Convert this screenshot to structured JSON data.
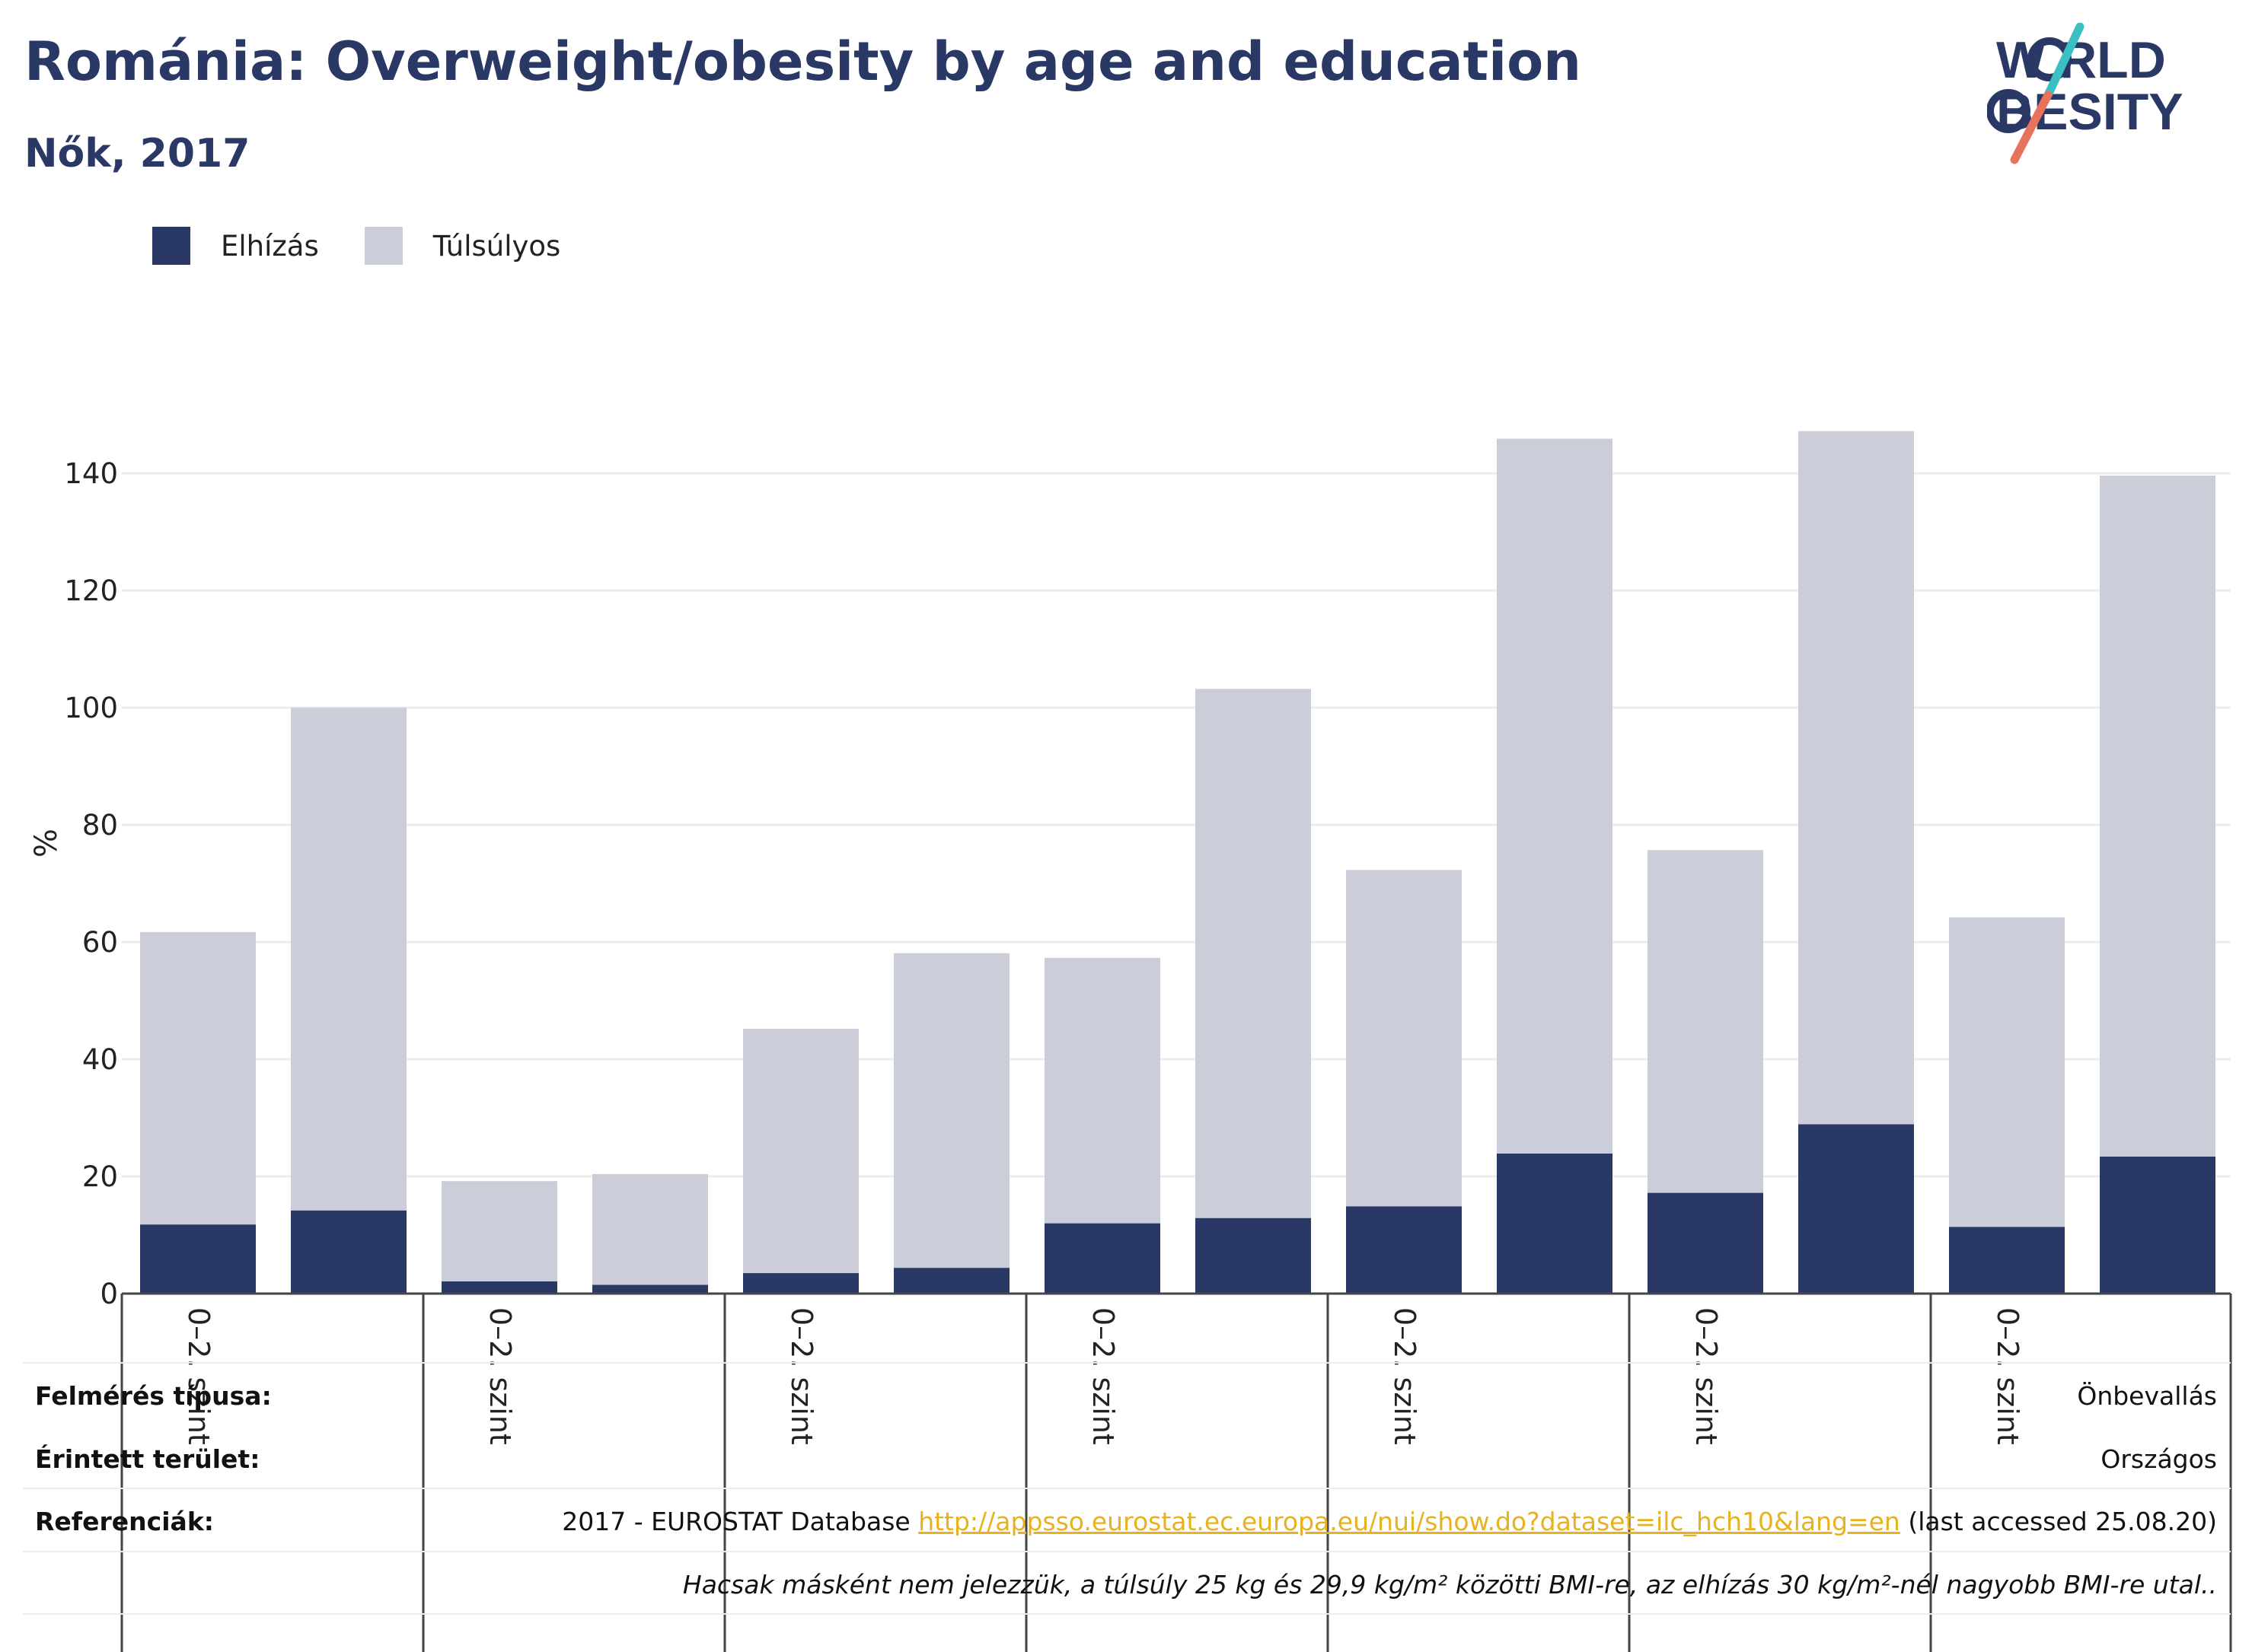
{
  "header": {
    "title": "Románia: Overweight/obesity by age and education",
    "subtitle": "Nők, 2017"
  },
  "logo": {
    "line1": "W RLD",
    "line2": "BESITY",
    "brand": "WORLD OBESITY",
    "colors": {
      "text": "#2a3866",
      "slash_teal": "#3bbfc1",
      "slash_coral": "#e8735c"
    }
  },
  "legend": {
    "obesity": "Elhízás",
    "overweight": "Túlsúlyos"
  },
  "colors": {
    "obesity": "#2a3866",
    "overweight": "#cbcdd8",
    "grid": "#ececec",
    "link": "#e8b11e"
  },
  "chart_data": {
    "type": "bar",
    "stacked": true,
    "ylabel": "%",
    "ylim": [
      0,
      150
    ],
    "yticks": [
      0,
      20,
      40,
      60,
      80,
      100,
      120,
      140
    ],
    "grid": true,
    "legend_position": "top-left",
    "group_labels": [
      "0–2. szint",
      "0–2. szint",
      "0–2. szint",
      "0–2. szint",
      "0–2. szint",
      "0–2. szint",
      "0–2. szint"
    ],
    "series": [
      {
        "name": "Elhízás",
        "values": [
          11.8,
          14.2,
          2.1,
          1.5,
          3.5,
          4.4,
          12.0,
          12.9,
          14.9,
          23.9,
          17.2,
          28.9,
          11.4,
          23.4
        ]
      },
      {
        "name": "Túlsúlyos",
        "values": [
          49.9,
          85.8,
          17.1,
          18.9,
          41.7,
          53.7,
          45.3,
          90.3,
          57.4,
          122.0,
          58.5,
          118.3,
          52.8,
          116.2
        ]
      }
    ]
  },
  "footer": {
    "survey_type_label": "Felmérés típusa:",
    "survey_type_value": "Önbevallás",
    "area_label": "Érintett terület:",
    "area_value": "Országos",
    "references_label": "Referenciák:",
    "reference_prefix": "2017 - EUROSTAT Database ",
    "reference_url": "http://appsso.eurostat.ec.europa.eu/nui/show.do?dataset=ilc_hch10&lang=en",
    "reference_suffix": " (last accessed 25.08.20)",
    "note": "Hacsak másként nem jelezzük, a túlsúly 25 kg és 29,9 kg/m² közötti BMI-re, az elhízás 30 kg/m²-nél nagyobb BMI-re utal.."
  }
}
